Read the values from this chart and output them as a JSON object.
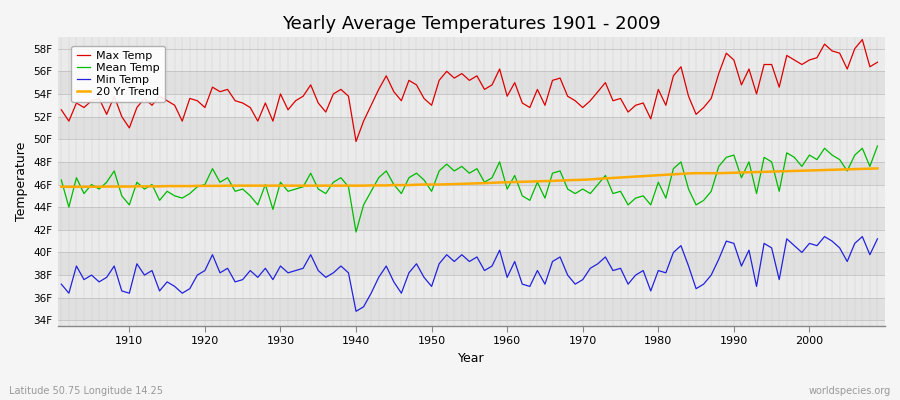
{
  "title": "Yearly Average Temperatures 1901 - 2009",
  "xlabel": "Year",
  "ylabel": "Temperature",
  "bottom_left": "Latitude 50.75 Longitude 14.25",
  "bottom_right": "worldspecies.org",
  "legend_labels": [
    "Max Temp",
    "Mean Temp",
    "Min Temp",
    "20 Yr Trend"
  ],
  "legend_colors": [
    "#dd0000",
    "#00bb00",
    "#2222dd",
    "#ffaa00"
  ],
  "yticks": [
    34,
    36,
    38,
    40,
    42,
    44,
    46,
    48,
    50,
    52,
    54,
    56,
    58
  ],
  "ylim": [
    33.5,
    59.0
  ],
  "xlim": [
    1900.5,
    2010
  ],
  "years": [
    1901,
    1902,
    1903,
    1904,
    1905,
    1906,
    1907,
    1908,
    1909,
    1910,
    1911,
    1912,
    1913,
    1914,
    1915,
    1916,
    1917,
    1918,
    1919,
    1920,
    1921,
    1922,
    1923,
    1924,
    1925,
    1926,
    1927,
    1928,
    1929,
    1930,
    1931,
    1932,
    1933,
    1934,
    1935,
    1936,
    1937,
    1938,
    1939,
    1940,
    1941,
    1942,
    1943,
    1944,
    1945,
    1946,
    1947,
    1948,
    1949,
    1950,
    1951,
    1952,
    1953,
    1954,
    1955,
    1956,
    1957,
    1958,
    1959,
    1960,
    1961,
    1962,
    1963,
    1964,
    1965,
    1966,
    1967,
    1968,
    1969,
    1970,
    1971,
    1972,
    1973,
    1974,
    1975,
    1976,
    1977,
    1978,
    1979,
    1980,
    1981,
    1982,
    1983,
    1984,
    1985,
    1986,
    1987,
    1988,
    1989,
    1990,
    1991,
    1992,
    1993,
    1994,
    1995,
    1996,
    1997,
    1998,
    1999,
    2000,
    2001,
    2002,
    2003,
    2004,
    2005,
    2006,
    2007,
    2008,
    2009
  ],
  "max_temp": [
    52.6,
    51.6,
    53.2,
    52.8,
    53.4,
    53.6,
    52.2,
    53.8,
    52.0,
    51.0,
    52.8,
    53.6,
    53.0,
    53.8,
    53.4,
    53.0,
    51.6,
    53.6,
    53.4,
    52.8,
    54.6,
    54.2,
    54.4,
    53.4,
    53.2,
    52.8,
    51.6,
    53.2,
    51.6,
    54.0,
    52.6,
    53.4,
    53.8,
    54.8,
    53.2,
    52.4,
    54.0,
    54.4,
    53.8,
    49.8,
    51.6,
    53.0,
    54.4,
    55.6,
    54.2,
    53.4,
    55.2,
    54.8,
    53.6,
    53.0,
    55.2,
    56.0,
    55.4,
    55.8,
    55.2,
    55.6,
    54.4,
    54.8,
    56.2,
    53.8,
    55.0,
    53.2,
    52.8,
    54.4,
    53.0,
    55.2,
    55.4,
    53.8,
    53.4,
    52.8,
    53.4,
    54.2,
    55.0,
    53.4,
    53.6,
    52.4,
    53.0,
    53.2,
    51.8,
    54.4,
    53.0,
    55.6,
    56.4,
    53.8,
    52.2,
    52.8,
    53.6,
    55.8,
    57.6,
    57.0,
    54.8,
    56.2,
    54.0,
    56.6,
    56.6,
    54.6,
    57.4,
    57.0,
    56.6,
    57.0,
    57.2,
    58.4,
    57.8,
    57.6,
    56.2,
    58.0,
    58.8,
    56.4,
    56.8
  ],
  "mean_temp": [
    46.4,
    44.0,
    46.6,
    45.2,
    46.0,
    45.6,
    46.2,
    47.2,
    45.0,
    44.2,
    46.2,
    45.6,
    46.0,
    44.6,
    45.4,
    45.0,
    44.8,
    45.2,
    45.8,
    46.0,
    47.4,
    46.2,
    46.6,
    45.4,
    45.6,
    45.0,
    44.2,
    46.0,
    43.8,
    46.2,
    45.4,
    45.6,
    45.8,
    47.0,
    45.6,
    45.2,
    46.2,
    46.6,
    45.8,
    41.8,
    44.2,
    45.4,
    46.6,
    47.2,
    46.0,
    45.2,
    46.6,
    47.0,
    46.4,
    45.4,
    47.2,
    47.8,
    47.2,
    47.6,
    47.0,
    47.4,
    46.2,
    46.6,
    48.0,
    45.6,
    46.8,
    45.0,
    44.6,
    46.2,
    44.8,
    47.0,
    47.2,
    45.6,
    45.2,
    45.6,
    45.2,
    46.0,
    46.8,
    45.2,
    45.4,
    44.2,
    44.8,
    45.0,
    44.2,
    46.2,
    44.8,
    47.4,
    48.0,
    45.6,
    44.2,
    44.6,
    45.4,
    47.6,
    48.4,
    48.6,
    46.6,
    48.0,
    45.2,
    48.4,
    48.0,
    45.4,
    48.8,
    48.4,
    47.6,
    48.6,
    48.2,
    49.2,
    48.6,
    48.2,
    47.2,
    48.6,
    49.2,
    47.6,
    49.4
  ],
  "min_temp": [
    37.2,
    36.4,
    38.8,
    37.6,
    38.0,
    37.4,
    37.8,
    38.8,
    36.6,
    36.4,
    39.0,
    38.0,
    38.4,
    36.6,
    37.4,
    37.0,
    36.4,
    36.8,
    38.0,
    38.4,
    39.8,
    38.2,
    38.6,
    37.4,
    37.6,
    38.4,
    37.8,
    38.6,
    37.6,
    38.8,
    38.2,
    38.4,
    38.6,
    39.8,
    38.4,
    37.8,
    38.2,
    38.8,
    38.2,
    34.8,
    35.2,
    36.4,
    37.8,
    38.8,
    37.4,
    36.4,
    38.2,
    39.0,
    37.8,
    37.0,
    39.0,
    39.8,
    39.2,
    39.8,
    39.2,
    39.6,
    38.4,
    38.8,
    40.2,
    37.8,
    39.2,
    37.2,
    37.0,
    38.4,
    37.2,
    39.2,
    39.6,
    38.0,
    37.2,
    37.6,
    38.6,
    39.0,
    39.6,
    38.4,
    38.6,
    37.2,
    38.0,
    38.4,
    36.6,
    38.4,
    38.2,
    40.0,
    40.6,
    38.8,
    36.8,
    37.2,
    38.0,
    39.4,
    41.0,
    40.8,
    38.8,
    40.2,
    37.0,
    40.8,
    40.4,
    37.6,
    41.2,
    40.6,
    40.0,
    40.8,
    40.6,
    41.4,
    41.0,
    40.4,
    39.2,
    40.8,
    41.4,
    39.8,
    41.2
  ],
  "trend_temp": [
    45.8,
    45.8,
    45.8,
    45.8,
    45.8,
    45.8,
    45.82,
    45.82,
    45.82,
    45.82,
    45.84,
    45.84,
    45.84,
    45.84,
    45.86,
    45.86,
    45.86,
    45.86,
    45.88,
    45.88,
    45.88,
    45.88,
    45.9,
    45.9,
    45.9,
    45.9,
    45.9,
    45.9,
    45.9,
    45.9,
    45.9,
    45.9,
    45.9,
    45.9,
    45.9,
    45.9,
    45.9,
    45.9,
    45.9,
    45.9,
    45.9,
    45.92,
    45.92,
    45.92,
    45.95,
    45.95,
    45.95,
    45.98,
    46.0,
    46.0,
    46.0,
    46.02,
    46.04,
    46.06,
    46.08,
    46.1,
    46.12,
    46.15,
    46.18,
    46.2,
    46.22,
    46.24,
    46.26,
    46.28,
    46.3,
    46.32,
    46.35,
    46.38,
    46.4,
    46.42,
    46.45,
    46.5,
    46.54,
    46.58,
    46.62,
    46.66,
    46.7,
    46.74,
    46.78,
    46.82,
    46.86,
    46.9,
    46.94,
    46.98,
    47.0,
    47.0,
    47.0,
    47.0,
    47.02,
    47.04,
    47.06,
    47.08,
    47.1,
    47.12,
    47.14,
    47.16,
    47.18,
    47.2,
    47.22,
    47.24,
    47.26,
    47.28,
    47.3,
    47.32,
    47.34,
    47.36,
    47.38,
    47.4,
    47.42
  ],
  "bg_outer": "#f0f0f0",
  "bg_plot": "#e8e8e8",
  "band_light": "#ebebeb",
  "band_dark": "#dcdcdc",
  "grid_color": "#c8c8c8",
  "line_lw": 0.9
}
